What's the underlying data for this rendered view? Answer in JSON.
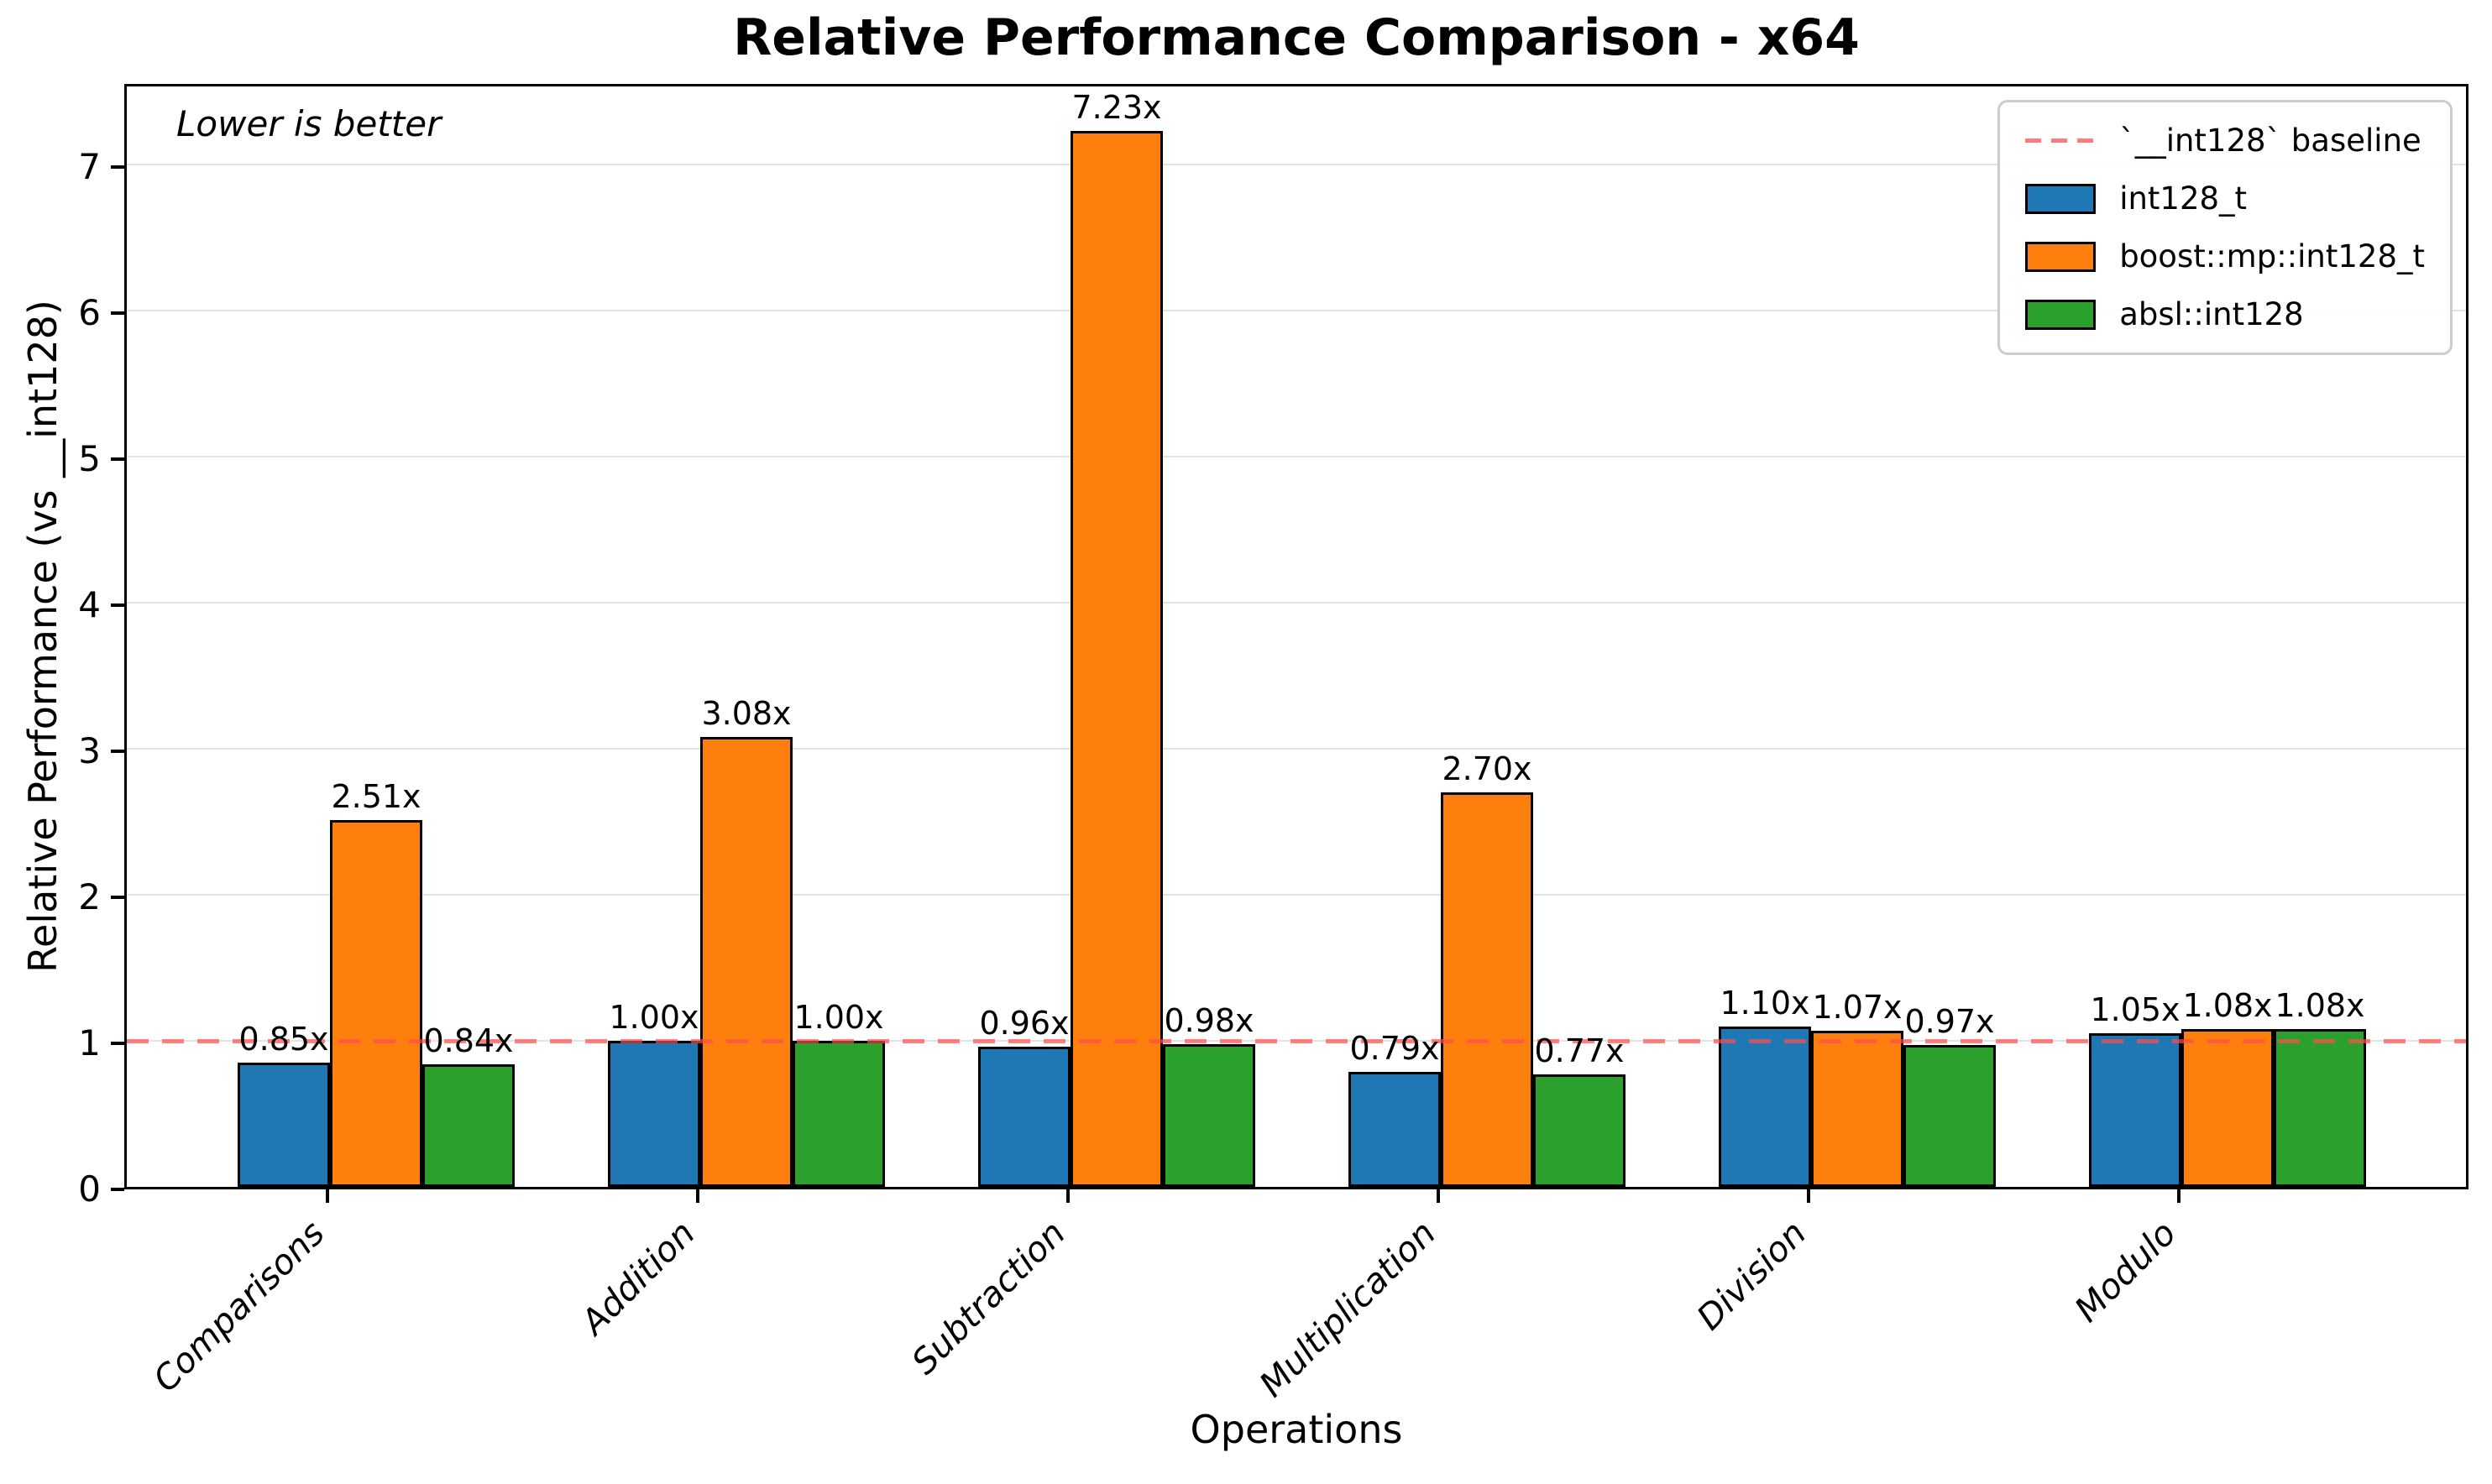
{
  "chart_data": {
    "type": "bar",
    "title": "Relative Performance Comparison - x64",
    "xlabel": "Operations",
    "ylabel": "Relative Performance (vs __int128)",
    "annotation": "Lower is better",
    "categories": [
      "Comparisons",
      "Addition",
      "Subtraction",
      "Multiplication",
      "Division",
      "Modulo"
    ],
    "series": [
      {
        "name": "int128_t",
        "color": "#1f77b4",
        "values": [
          0.85,
          1.0,
          0.96,
          0.79,
          1.1,
          1.05
        ]
      },
      {
        "name": "boost::mp::int128_t",
        "color": "#ff7f0e",
        "values": [
          2.51,
          3.08,
          7.23,
          2.7,
          1.07,
          1.08
        ]
      },
      {
        "name": "absl::int128",
        "color": "#2ca02c",
        "values": [
          0.84,
          1.0,
          0.98,
          0.77,
          0.97,
          1.08
        ]
      }
    ],
    "value_label_suffix": "x",
    "baseline": {
      "value": 1.0,
      "label": "`__int128` baseline",
      "color": "#ff4d4d"
    },
    "yticks": [
      0,
      1,
      2,
      3,
      4,
      5,
      6,
      7
    ],
    "ylim": [
      0,
      7.57
    ],
    "grid": true,
    "legend_position": "upper right",
    "bar_edge_color": "#000000",
    "grid_color": "#e3e3e3"
  }
}
